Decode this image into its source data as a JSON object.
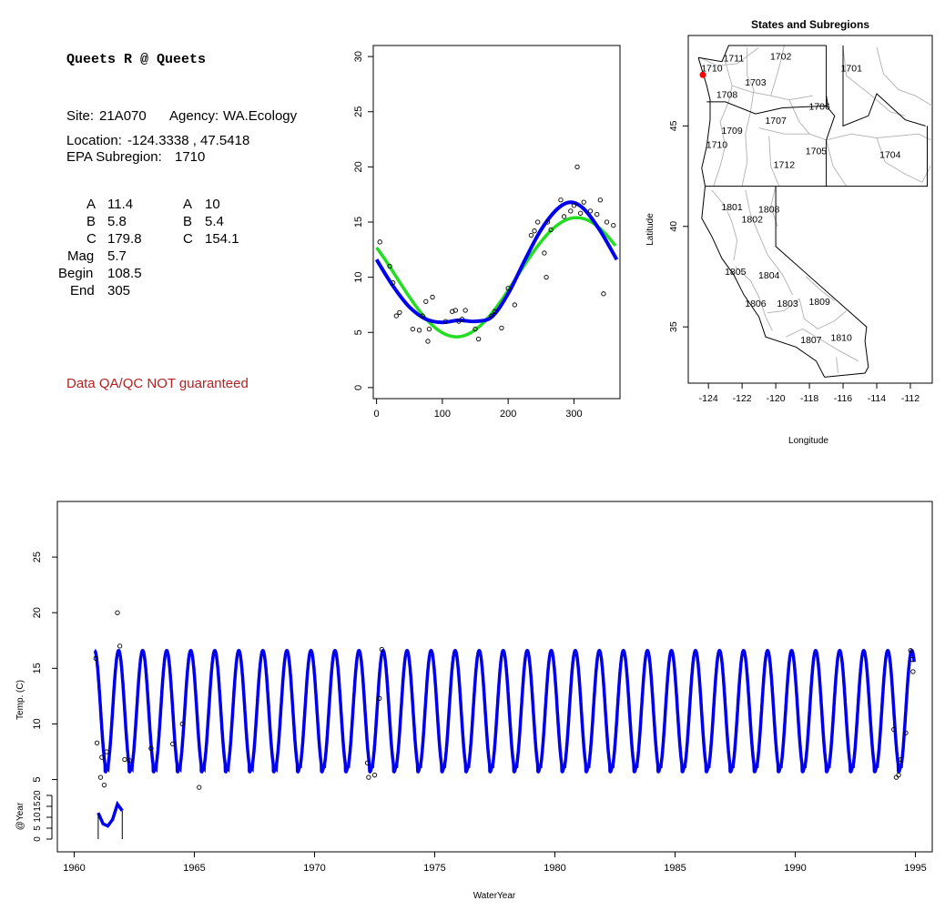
{
  "info": {
    "title": "Queets R @ Queets",
    "site_label": "Site:",
    "site": "21A070",
    "agency_label": "Agency:",
    "agency": "WA.Ecology",
    "location_label": "Location:",
    "location": "-124.3338 , 47.5418",
    "subregion_label": "EPA Subregion:",
    "subregion": "1710",
    "qa_note": "Data QA/QC NOT guaranteed",
    "params": {
      "A_label": "A",
      "A1": "11.4",
      "A2": "10",
      "B_label": "B",
      "B1": "5.8",
      "B2": "5.4",
      "C_label": "C",
      "C1": "179.8",
      "C2": "154.1",
      "Mag_label": "Mag",
      "Mag": "5.7",
      "Begin_label": "Begin",
      "Begin": "108.5",
      "End_label": "End",
      "End": "305"
    }
  },
  "colors": {
    "fit1": "#22dd22",
    "fit2": "#0000ee",
    "site": "#ff0000",
    "qa": "#b22222"
  },
  "chart_data": [
    {
      "type": "scatter",
      "name": "seasonal",
      "xlim": [
        -5,
        370
      ],
      "ylim": [
        -1,
        31
      ],
      "xticks": [
        0,
        100,
        200,
        300
      ],
      "yticks": [
        0,
        5,
        10,
        15,
        20,
        25,
        30
      ],
      "points": [
        [
          5,
          13.2
        ],
        [
          20,
          11
        ],
        [
          25,
          9.5
        ],
        [
          30,
          6.5
        ],
        [
          35,
          6.8
        ],
        [
          55,
          5.3
        ],
        [
          65,
          5.2
        ],
        [
          70,
          6.5
        ],
        [
          75,
          7.8
        ],
        [
          78,
          4.2
        ],
        [
          80,
          5.3
        ],
        [
          85,
          8.2
        ],
        [
          105,
          6
        ],
        [
          115,
          6.9
        ],
        [
          120,
          7
        ],
        [
          125,
          6
        ],
        [
          130,
          6.2
        ],
        [
          135,
          7
        ],
        [
          150,
          5.3
        ],
        [
          155,
          4.4
        ],
        [
          175,
          6.5
        ],
        [
          180,
          6.9
        ],
        [
          190,
          5.4
        ],
        [
          200,
          9
        ],
        [
          210,
          7.5
        ],
        [
          235,
          13.8
        ],
        [
          240,
          14.2
        ],
        [
          245,
          15
        ],
        [
          255,
          12.2
        ],
        [
          258,
          10
        ],
        [
          260,
          15
        ],
        [
          265,
          14.3
        ],
        [
          280,
          17
        ],
        [
          285,
          15.5
        ],
        [
          295,
          16
        ],
        [
          300,
          16.5
        ],
        [
          305,
          20
        ],
        [
          310,
          15.8
        ],
        [
          315,
          16.8
        ],
        [
          325,
          16
        ],
        [
          335,
          15.7
        ],
        [
          340,
          17
        ],
        [
          345,
          8.5
        ],
        [
          350,
          15
        ],
        [
          360,
          14.7
        ]
      ],
      "fit1": {
        "A": 10,
        "B": 5.4,
        "C": 154.1
      },
      "fit2_points": [
        [
          0,
          11.6
        ],
        [
          25,
          9.2
        ],
        [
          50,
          7.3
        ],
        [
          75,
          6.2
        ],
        [
          100,
          5.9
        ],
        [
          125,
          6.1
        ],
        [
          150,
          6
        ],
        [
          175,
          6.4
        ],
        [
          200,
          8.5
        ],
        [
          225,
          11.5
        ],
        [
          250,
          14.3
        ],
        [
          275,
          16.2
        ],
        [
          295,
          16.8
        ],
        [
          315,
          16.2
        ],
        [
          340,
          14.2
        ],
        [
          365,
          11.6
        ]
      ]
    },
    {
      "type": "map",
      "title": "States and Subregions",
      "xlabel": "Longitude",
      "ylabel": "Latitude",
      "xlim": [
        -125.2,
        -110.7
      ],
      "ylim": [
        32.2,
        49.5
      ],
      "xticks": [
        -124,
        -122,
        -120,
        -118,
        -116,
        -114,
        -112
      ],
      "yticks": [
        35,
        40,
        45
      ],
      "site": [
        -124.3338,
        47.5418
      ],
      "labels": [
        {
          "t": "1702",
          "x": -119.7,
          "y": 48.3
        },
        {
          "t": "1701",
          "x": -115.5,
          "y": 47.7
        },
        {
          "t": "1711",
          "x": -122.5,
          "y": 48.2
        },
        {
          "t": "1710",
          "x": -123.8,
          "y": 47.7
        },
        {
          "t": "1703",
          "x": -121.2,
          "y": 47.0
        },
        {
          "t": "1708",
          "x": -122.9,
          "y": 46.4
        },
        {
          "t": "1706",
          "x": -117.4,
          "y": 45.8
        },
        {
          "t": "1707",
          "x": -120.0,
          "y": 45.1
        },
        {
          "t": "1709",
          "x": -122.6,
          "y": 44.6
        },
        {
          "t": "1710",
          "x": -123.5,
          "y": 43.9
        },
        {
          "t": "1705",
          "x": -117.6,
          "y": 43.6
        },
        {
          "t": "1704",
          "x": -113.2,
          "y": 43.4
        },
        {
          "t": "1712",
          "x": -119.5,
          "y": 42.9
        },
        {
          "t": "1801",
          "x": -122.6,
          "y": 40.8
        },
        {
          "t": "1808",
          "x": -120.4,
          "y": 40.7
        },
        {
          "t": "1802",
          "x": -121.4,
          "y": 40.2
        },
        {
          "t": "1805",
          "x": -122.4,
          "y": 37.6
        },
        {
          "t": "1804",
          "x": -120.4,
          "y": 37.4
        },
        {
          "t": "1809",
          "x": -117.4,
          "y": 36.1
        },
        {
          "t": "1806",
          "x": -121.2,
          "y": 36.0
        },
        {
          "t": "1803",
          "x": -119.3,
          "y": 36.0
        },
        {
          "t": "1810",
          "x": -116.1,
          "y": 34.3
        },
        {
          "t": "1807",
          "x": -117.9,
          "y": 34.2
        }
      ]
    },
    {
      "type": "line",
      "name": "timeseries",
      "xlabel": "WaterYear",
      "ylabel": "Temp. (C)",
      "ylabel2": "@Year",
      "xlim": [
        1959.3,
        1995.7
      ],
      "xticks": [
        1960,
        1965,
        1970,
        1975,
        1980,
        1985,
        1990,
        1995
      ],
      "ylim": [
        -1.5,
        30
      ],
      "yticks": [
        5,
        10,
        15,
        20,
        25
      ],
      "y2ticks": [
        0,
        5,
        10,
        15,
        20
      ],
      "y2lim": [
        0,
        20
      ],
      "start": 1960.85,
      "end": 1994.95,
      "peak_value": 16.6,
      "trough_value": 5.9,
      "points": [
        [
          1960.9,
          15.9
        ],
        [
          1960.95,
          8.3
        ],
        [
          1961.1,
          5.2
        ],
        [
          1961.15,
          7
        ],
        [
          1961.25,
          4.5
        ],
        [
          1961.35,
          7.5
        ],
        [
          1961.8,
          20
        ],
        [
          1961.9,
          17
        ],
        [
          1962.1,
          6.8
        ],
        [
          1962.3,
          6.7
        ],
        [
          1963.2,
          7.8
        ],
        [
          1964.1,
          8.2
        ],
        [
          1964.5,
          10
        ],
        [
          1965.2,
          4.3
        ],
        [
          1972.2,
          6.5
        ],
        [
          1972.25,
          5.2
        ],
        [
          1972.5,
          5.4
        ],
        [
          1972.7,
          12.3
        ],
        [
          1972.8,
          16.7
        ],
        [
          1994.1,
          9.5
        ],
        [
          1994.2,
          5.2
        ],
        [
          1994.3,
          5.4
        ],
        [
          1994.4,
          6.8
        ],
        [
          1994.6,
          9.2
        ],
        [
          1994.8,
          16.6
        ],
        [
          1994.85,
          15.8
        ],
        [
          1994.9,
          14.7
        ]
      ]
    }
  ]
}
